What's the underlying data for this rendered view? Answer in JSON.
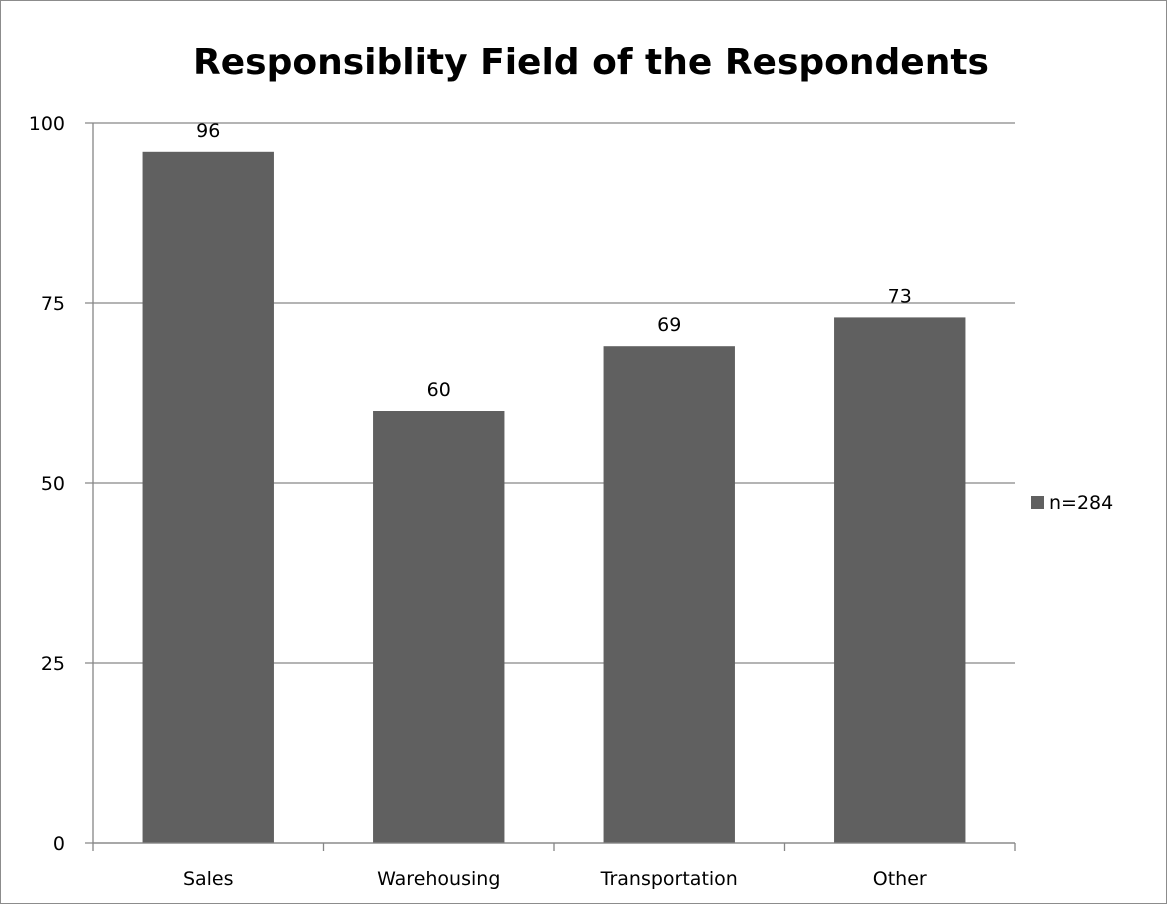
{
  "chart_data": {
    "type": "bar",
    "title": "Responsiblity Field of the Respondents",
    "xlabel": "",
    "ylabel": "",
    "categories": [
      "Sales",
      "Warehousing",
      "Transportation",
      "Other"
    ],
    "series": [
      {
        "name": "n=284",
        "values": [
          96,
          60,
          69,
          73
        ]
      }
    ],
    "ylim": [
      0,
      100
    ],
    "yticks": [
      0,
      25,
      50,
      75,
      100
    ],
    "data_labels": true,
    "grid": true,
    "legend": "right",
    "colors": {
      "bar": "#606060",
      "grid": "#868686",
      "axis": "#868686"
    }
  }
}
